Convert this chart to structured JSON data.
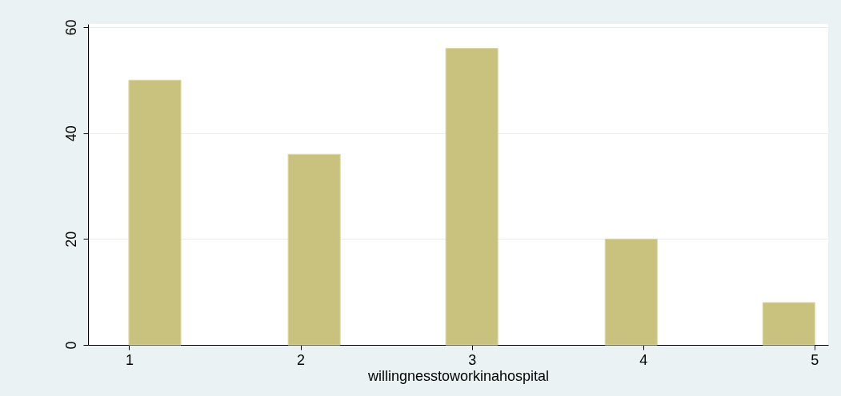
{
  "chart_data": {
    "type": "bar",
    "xlabel": "willingnesstoworkinahospital",
    "x": [
      1.15,
      2.08,
      3,
      3.93,
      4.85
    ],
    "values": [
      50,
      36,
      56,
      20,
      8
    ],
    "color": "#c9c27f",
    "xlim": [
      0.76,
      5.08
    ],
    "xticks": [
      1,
      2,
      3,
      4,
      5
    ],
    "ylim": [
      0,
      60.6
    ],
    "yticks": [
      0,
      20,
      40,
      60
    ],
    "grid": "y"
  }
}
